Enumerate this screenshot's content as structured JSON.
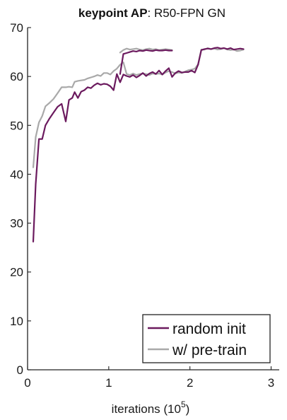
{
  "chart_data": {
    "type": "line",
    "title_bold": "keypoint AP",
    "title_rest": ": R50-FPN GN",
    "xlabel_prefix": "iterations (10",
    "xlabel_exp": "5",
    "xlabel_suffix": ")",
    "ylabel": "",
    "xlim": [
      0,
      3.1
    ],
    "ylim": [
      0,
      70
    ],
    "xticks": [
      0,
      1,
      2,
      3
    ],
    "yticks": [
      0,
      10,
      20,
      30,
      40,
      50,
      60,
      70
    ],
    "grid": false,
    "legend_position": "bottom-right",
    "series": [
      {
        "name": "random init",
        "color": "#6b1a5e",
        "segments": [
          {
            "x": [
              0.07,
              0.1,
              0.14,
              0.18,
              0.22,
              0.27,
              0.32,
              0.37,
              0.42,
              0.47,
              0.51,
              0.55,
              0.58,
              0.62,
              0.66,
              0.7,
              0.74,
              0.78,
              0.82,
              0.86,
              0.9,
              0.94,
              0.98,
              1.02,
              1.06,
              1.1,
              1.14,
              1.18,
              1.22,
              1.26,
              1.3,
              1.34,
              1.38,
              1.42,
              1.46,
              1.5,
              1.54,
              1.58,
              1.62,
              1.66,
              1.7,
              1.74,
              1.78,
              1.82,
              1.86,
              1.9,
              1.94,
              1.98,
              2.02,
              2.06,
              2.1
            ],
            "y": [
              26.2,
              38,
              47.2,
              47.2,
              50,
              51.4,
              52.6,
              53.8,
              54.4,
              50.8,
              55.2,
              55.6,
              56.8,
              55.6,
              56.9,
              57.2,
              57.8,
              57.6,
              58.2,
              58.6,
              58.3,
              58.5,
              58.4,
              58.0,
              57.2,
              60.5,
              58.8,
              60.4,
              60.1,
              59.9,
              60.3,
              59.8,
              60.2,
              60.7,
              60.1,
              60.6,
              60.9,
              60.5,
              61.2,
              60.4,
              61.1,
              61.7,
              59.9,
              60.7,
              61.1,
              60.8,
              60.9,
              60.9,
              61.2,
              60.8,
              62.4
            ]
          },
          {
            "x": [
              1.14,
              1.18,
              1.22,
              1.26,
              1.3,
              1.34,
              1.38,
              1.42,
              1.46,
              1.5,
              1.54,
              1.58,
              1.62,
              1.66,
              1.7,
              1.74,
              1.78
            ],
            "y": [
              60.5,
              64.6,
              64.8,
              65.0,
              65.2,
              65.1,
              65.3,
              65.2,
              65.4,
              65.3,
              65.2,
              65.4,
              65.3,
              65.3,
              65.4,
              65.3,
              65.3
            ]
          },
          {
            "x": [
              2.1,
              2.14,
              2.18,
              2.22,
              2.26,
              2.3,
              2.34,
              2.38,
              2.42,
              2.46,
              2.5,
              2.54,
              2.58,
              2.62,
              2.66
            ],
            "y": [
              62.4,
              65.4,
              65.6,
              65.7,
              65.6,
              65.8,
              65.9,
              65.7,
              65.8,
              65.6,
              65.8,
              65.5,
              65.6,
              65.7,
              65.6
            ]
          }
        ]
      },
      {
        "name": "w/ pre-train",
        "color": "#a9a9a9",
        "segments": [
          {
            "x": [
              0.07,
              0.1,
              0.14,
              0.18,
              0.22,
              0.27,
              0.32,
              0.37,
              0.42,
              0.47,
              0.51,
              0.55,
              0.58,
              0.62,
              0.66,
              0.7,
              0.74,
              0.78,
              0.82,
              0.86,
              0.9,
              0.94,
              0.98,
              1.02,
              1.06,
              1.1,
              1.14,
              1.18,
              1.22,
              1.26,
              1.3,
              1.34,
              1.38,
              1.42,
              1.46,
              1.5,
              1.54,
              1.58,
              1.62,
              1.66,
              1.7,
              1.74,
              1.78,
              1.82,
              1.86,
              1.9,
              1.94,
              1.98,
              2.02,
              2.06,
              2.1
            ],
            "y": [
              41.4,
              47.6,
              50.6,
              51.9,
              53.9,
              54.6,
              55.4,
              56.6,
              57.8,
              57.8,
              57.9,
              57.8,
              58.9,
              59.1,
              59.2,
              59.3,
              59.6,
              59.8,
              60.0,
              60.3,
              60.1,
              60.7,
              60.7,
              60.4,
              61.1,
              61.6,
              62.4,
              62.9,
              60.5,
              60.3,
              60.6,
              60.3,
              60.5,
              60.6,
              60.5,
              60.3,
              60.6,
              60.5,
              60.6,
              60.4,
              60.8,
              61.1,
              60.9,
              60.6,
              60.8,
              60.7,
              61.0,
              61.3,
              61.4,
              61.6,
              62.5
            ]
          },
          {
            "x": [
              1.14,
              1.18,
              1.22,
              1.26,
              1.3,
              1.34,
              1.38,
              1.42,
              1.46,
              1.5,
              1.54,
              1.58,
              1.62,
              1.66,
              1.7,
              1.74,
              1.78
            ],
            "y": [
              64.9,
              65.4,
              65.7,
              65.5,
              65.6,
              65.7,
              65.5,
              65.4,
              65.6,
              65.7,
              65.5,
              65.6,
              65.4,
              65.5,
              65.6,
              65.5,
              65.4
            ]
          },
          {
            "x": [
              2.1,
              2.14,
              2.18,
              2.22,
              2.26,
              2.3,
              2.34,
              2.38,
              2.42,
              2.46,
              2.5,
              2.54,
              2.58,
              2.62,
              2.66
            ],
            "y": [
              62.5,
              65.5,
              65.5,
              65.8,
              65.6,
              65.7,
              65.5,
              65.6,
              65.8,
              65.5,
              65.4,
              65.5,
              65.2,
              65.3,
              65.5
            ]
          }
        ]
      }
    ]
  }
}
